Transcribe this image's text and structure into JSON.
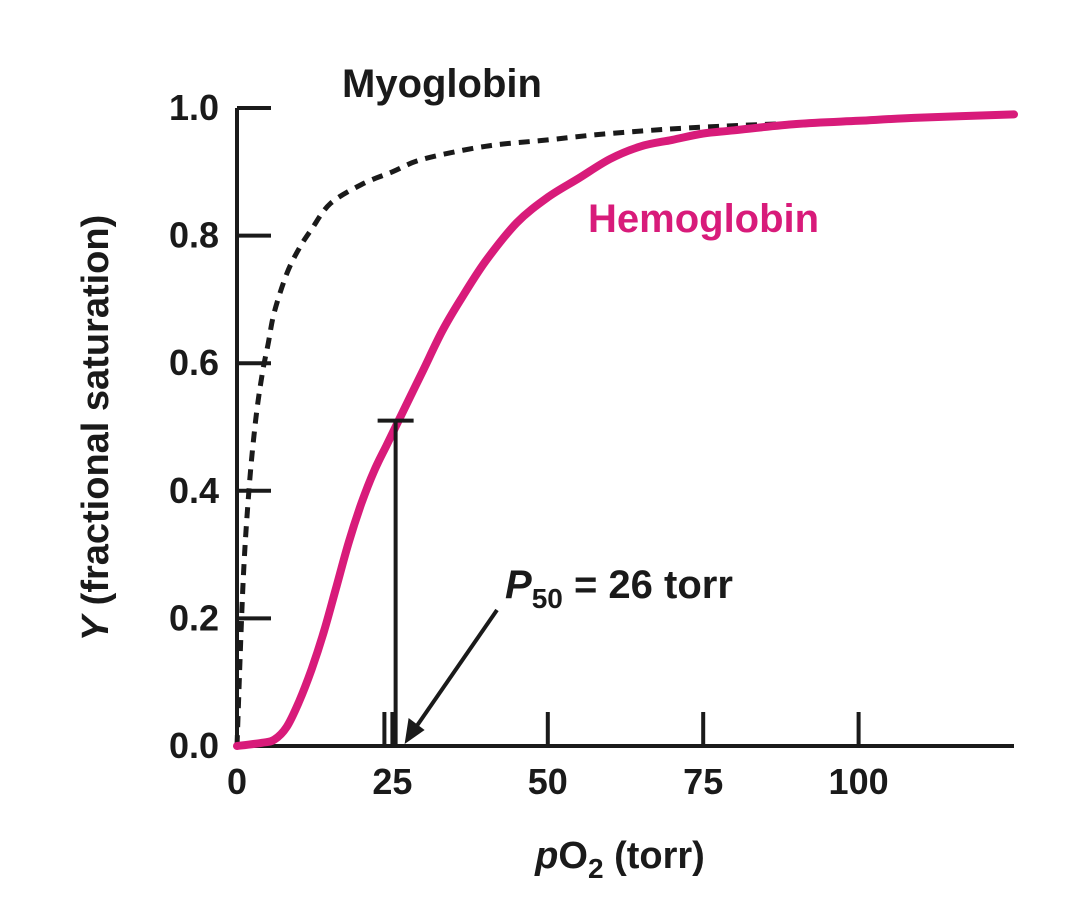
{
  "chart_data": {
    "type": "line",
    "xlabel": {
      "prefix": "p",
      "main": "O",
      "sub": "2",
      "suffix": " (torr)"
    },
    "ylabel": {
      "var": "Y",
      "rest": " (fractional saturation)"
    },
    "xlim": [
      0,
      125
    ],
    "ylim": [
      0,
      1.0
    ],
    "x_ticks": [
      0,
      25,
      50,
      75,
      100
    ],
    "x_tick_labels": [
      "0",
      "25",
      "50",
      "75",
      "100"
    ],
    "y_ticks": [
      0,
      0.2,
      0.4,
      0.6,
      0.8,
      1.0
    ],
    "y_tick_labels": [
      "0.0",
      "0.2",
      "0.4",
      "0.6",
      "0.8",
      "1.0"
    ],
    "grid": false,
    "series": [
      {
        "name": "Myoglobin",
        "style": "dashed",
        "color": "#1a1a1a",
        "x": [
          0,
          1,
          2,
          3,
          4,
          5,
          6,
          8,
          10,
          12,
          15,
          20,
          25,
          30,
          40,
          50,
          60,
          75,
          100,
          125
        ],
        "y": [
          0,
          0.26,
          0.41,
          0.51,
          0.58,
          0.63,
          0.68,
          0.74,
          0.78,
          0.81,
          0.85,
          0.88,
          0.9,
          0.92,
          0.94,
          0.95,
          0.96,
          0.97,
          0.98,
          0.99
        ]
      },
      {
        "name": "Hemoglobin",
        "style": "solid",
        "color": "#d81b7a",
        "x": [
          0,
          4,
          6,
          8,
          10,
          12,
          14,
          16,
          18,
          20,
          22,
          24,
          26,
          28,
          30,
          33,
          36,
          40,
          45,
          50,
          55,
          60,
          65,
          70,
          75,
          80,
          90,
          100,
          110,
          125
        ],
        "y": [
          0,
          0.005,
          0.01,
          0.03,
          0.07,
          0.12,
          0.18,
          0.25,
          0.32,
          0.38,
          0.43,
          0.47,
          0.51,
          0.55,
          0.59,
          0.65,
          0.7,
          0.76,
          0.82,
          0.86,
          0.89,
          0.92,
          0.94,
          0.95,
          0.96,
          0.965,
          0.975,
          0.98,
          0.985,
          0.99
        ]
      }
    ],
    "annotations": {
      "myoglobin_label": "Myoglobin",
      "hemoglobin_label": "Hemoglobin",
      "p50": {
        "var": "P",
        "sub": "50",
        "text": " = 26 torr",
        "x": 26,
        "y": 0.51
      }
    }
  },
  "colors": {
    "hemoglobin": "#d81b7a",
    "axes": "#1a1a1a"
  }
}
